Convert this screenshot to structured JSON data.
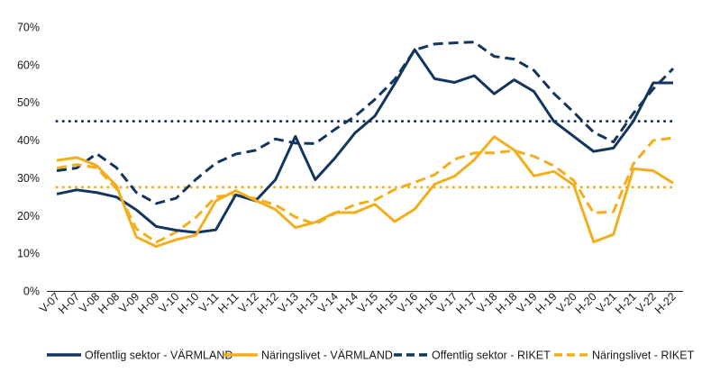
{
  "chart_data": {
    "type": "line",
    "title": "",
    "xlabel": "",
    "ylabel": "",
    "ylim": [
      0,
      70
    ],
    "y_ticks": [
      "0%",
      "10%",
      "20%",
      "30%",
      "40%",
      "50%",
      "60%",
      "70%"
    ],
    "y_tick_values": [
      0,
      10,
      20,
      30,
      40,
      50,
      60,
      70
    ],
    "grid": false,
    "legend_position": "bottom",
    "categories": [
      "V-07",
      "H-07",
      "V-08",
      "H-08",
      "V-09",
      "H-09",
      "V-10",
      "H-10",
      "V-11",
      "H-11",
      "V-12",
      "H-12",
      "V-13",
      "H-13",
      "V-14",
      "H-14",
      "V-15",
      "H-15",
      "V-16",
      "H-16",
      "V-17",
      "H-17",
      "V-18",
      "H-18",
      "V-19",
      "H-19",
      "V-20",
      "H-20",
      "V-21",
      "H-21",
      "V-22",
      "H-22"
    ],
    "series": [
      {
        "name": "Offentlig sektor - VÄRMLAND",
        "color": "#14355e",
        "style": "solid",
        "values": [
          25.7,
          26.8,
          26.1,
          24.9,
          21.5,
          17.1,
          16.1,
          15.5,
          16.2,
          25.5,
          23.9,
          29.5,
          41.0,
          29.5,
          35.3,
          41.9,
          46.4,
          55.0,
          64.0,
          56.3,
          55.3,
          57.1,
          52.3,
          56.0,
          52.9,
          45.0,
          41.0,
          37.0,
          37.9,
          45.0,
          55.2,
          55.2
        ]
      },
      {
        "name": "Näringslivet - VÄRMLAND",
        "color": "#f2ae1c",
        "style": "solid",
        "values": [
          34.6,
          35.4,
          33.3,
          27.9,
          14.3,
          11.8,
          13.6,
          14.8,
          23.9,
          26.6,
          24.0,
          21.6,
          16.8,
          18.2,
          20.8,
          20.8,
          23.0,
          18.4,
          21.7,
          28.3,
          30.4,
          34.8,
          40.9,
          37.4,
          30.5,
          31.7,
          28.1,
          13.0,
          15.0,
          32.4,
          31.9,
          28.6
        ]
      },
      {
        "name": "Offentlig sektor - RIKET",
        "color": "#14355e",
        "style": "dashed",
        "values": [
          31.9,
          32.6,
          36.4,
          32.7,
          26.1,
          23.2,
          24.6,
          29.6,
          33.9,
          36.3,
          37.3,
          40.3,
          39.2,
          39.1,
          42.9,
          46.3,
          50.8,
          56.1,
          63.9,
          65.5,
          65.8,
          66.0,
          62.2,
          61.5,
          58.5,
          52.4,
          47.4,
          42.1,
          39.5,
          47.1,
          53.6,
          59.0
        ]
      },
      {
        "name": "Näringslivet - RIKET",
        "color": "#f2ae1c",
        "style": "dashed",
        "values": [
          32.6,
          33.5,
          32.7,
          27.1,
          16.5,
          12.9,
          15.6,
          19.5,
          25.0,
          25.4,
          24.5,
          22.8,
          19.6,
          17.7,
          20.6,
          22.9,
          24.1,
          26.9,
          28.8,
          30.8,
          34.9,
          36.6,
          36.6,
          37.2,
          35.7,
          33.2,
          29.3,
          20.7,
          21.0,
          33.7,
          39.9,
          40.6
        ]
      },
      {
        "name": "",
        "color": "#14355e",
        "style": "dotted",
        "values": [
          45.0,
          45.0,
          45.0,
          45.0,
          45.0,
          45.0,
          45.0,
          45.0,
          45.0,
          45.0,
          45.0,
          45.0,
          45.0,
          45.0,
          45.0,
          45.0,
          45.0,
          45.0,
          45.0,
          45.0,
          45.0,
          45.0,
          45.0,
          45.0,
          45.0,
          45.0,
          45.0,
          45.0,
          45.0,
          45.0,
          45.0,
          45.0
        ]
      },
      {
        "name": "",
        "color": "#f2ae1c",
        "style": "dotted",
        "values": [
          27.5,
          27.5,
          27.5,
          27.5,
          27.5,
          27.5,
          27.5,
          27.5,
          27.5,
          27.5,
          27.5,
          27.5,
          27.5,
          27.5,
          27.5,
          27.5,
          27.5,
          27.5,
          27.5,
          27.5,
          27.5,
          27.5,
          27.5,
          27.5,
          27.5,
          27.5,
          27.5,
          27.5,
          27.5,
          27.5,
          27.5,
          27.5
        ]
      }
    ],
    "legend": [
      {
        "label": "Offentlig sektor - VÄRMLAND",
        "color": "#14355e",
        "style": "solid"
      },
      {
        "label": "Näringslivet - VÄRMLAND",
        "color": "#f2ae1c",
        "style": "solid"
      },
      {
        "label": "Offentlig sektor - RIKET",
        "color": "#14355e",
        "style": "dashed"
      },
      {
        "label": "Näringslivet - RIKET",
        "color": "#f2ae1c",
        "style": "dashed"
      }
    ]
  }
}
